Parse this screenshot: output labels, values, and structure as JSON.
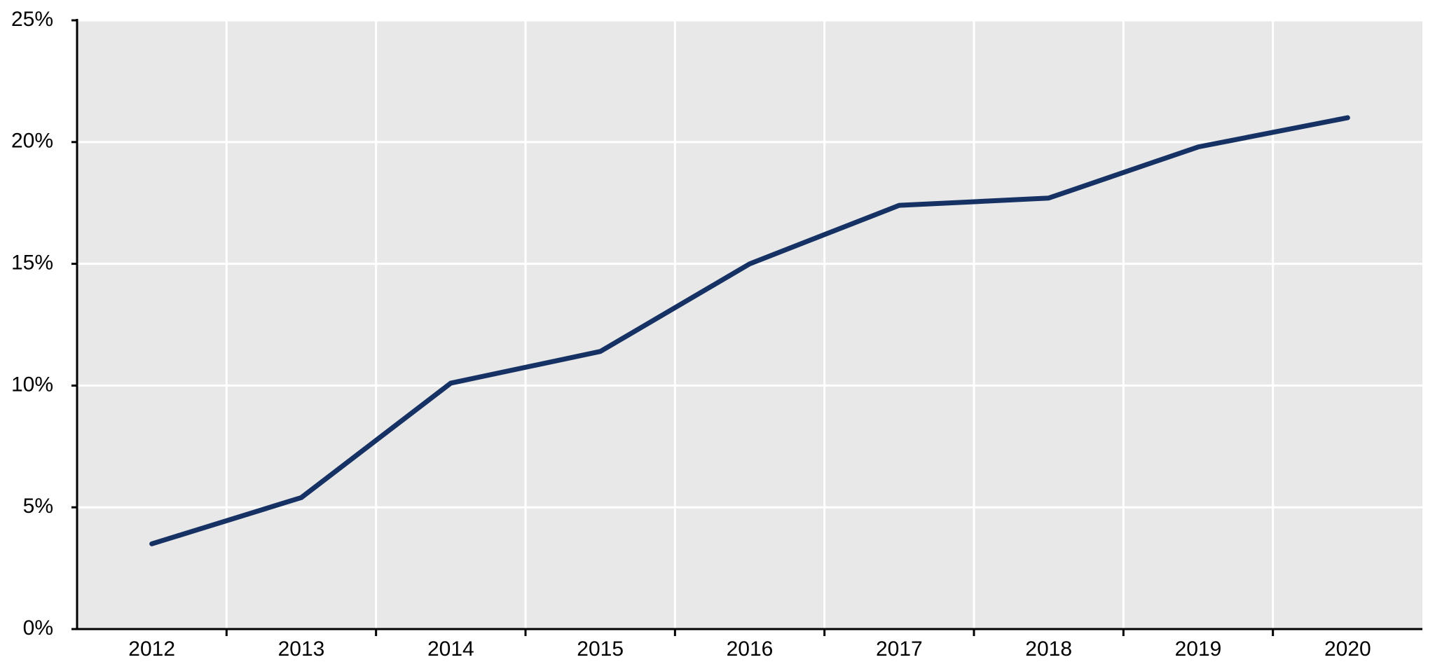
{
  "chart_data": {
    "type": "line",
    "categories": [
      "2012",
      "2013",
      "2014",
      "2015",
      "2016",
      "2017",
      "2018",
      "2019",
      "2020"
    ],
    "series": [
      {
        "color": "#163163",
        "values": [
          3.5,
          5.4,
          10.1,
          11.4,
          15.0,
          17.4,
          17.7,
          19.8,
          21.0
        ]
      }
    ],
    "ylim": [
      0,
      25
    ],
    "yticks": [
      {
        "value": 0,
        "label": "0%"
      },
      {
        "value": 5,
        "label": "5%"
      },
      {
        "value": 10,
        "label": "10%"
      },
      {
        "value": 15,
        "label": "15%"
      },
      {
        "value": 20,
        "label": "20%"
      },
      {
        "value": 25,
        "label": "25%"
      }
    ],
    "grid": true
  }
}
